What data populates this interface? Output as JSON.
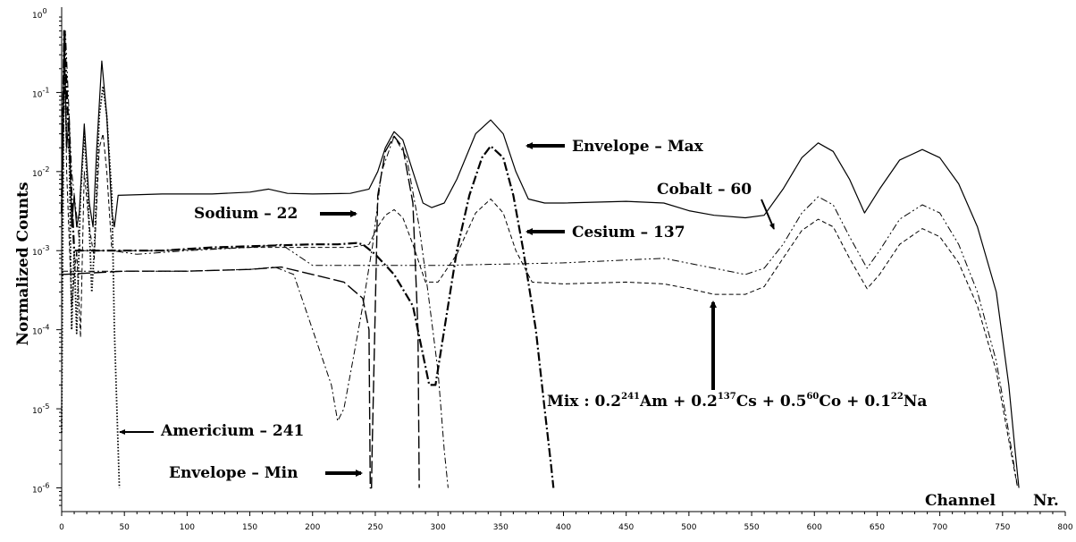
{
  "chart_data": {
    "type": "line",
    "title": "",
    "xlabel": "Channel Nr.",
    "ylabel": "Normalized Counts",
    "xlim": [
      0,
      800
    ],
    "ylim_log10": [
      -6.3,
      0
    ],
    "y_scale": "log",
    "grid": false,
    "x_ticks": [
      "0",
      "50",
      "100",
      "150",
      "200",
      "250",
      "300",
      "350",
      "400",
      "450",
      "500",
      "550",
      "600",
      "650",
      "700",
      "750",
      "800"
    ],
    "y_ticks": [
      {
        "base": "10",
        "exp": "0",
        "log": 0
      },
      {
        "base": "10",
        "exp": "-1",
        "log": -1
      },
      {
        "base": "10",
        "exp": "-2",
        "log": -2
      },
      {
        "base": "10",
        "exp": "-3",
        "log": -3
      },
      {
        "base": "10",
        "exp": "-4",
        "log": -4
      },
      {
        "base": "10",
        "exp": "-5",
        "log": -5
      },
      {
        "base": "10",
        "exp": "-6",
        "log": -6
      }
    ],
    "series": [
      {
        "name": "Envelope – Max",
        "style": "solid",
        "color": "#000000",
        "points": [
          [
            0,
            0.004
          ],
          [
            2,
            0.6
          ],
          [
            4,
            0.02
          ],
          [
            6,
            0.05
          ],
          [
            8,
            0.002
          ],
          [
            10,
            0.005
          ],
          [
            12,
            0.002
          ],
          [
            14,
            0.003
          ],
          [
            18,
            0.04
          ],
          [
            22,
            0.004
          ],
          [
            25,
            0.002
          ],
          [
            28,
            0.02
          ],
          [
            32,
            0.25
          ],
          [
            36,
            0.05
          ],
          [
            40,
            0.003
          ],
          [
            42,
            0.002
          ],
          [
            45,
            0.005
          ],
          [
            80,
            0.0052
          ],
          [
            120,
            0.0052
          ],
          [
            150,
            0.0055
          ],
          [
            165,
            0.006
          ],
          [
            180,
            0.0053
          ],
          [
            200,
            0.0052
          ],
          [
            230,
            0.0053
          ],
          [
            245,
            0.006
          ],
          [
            252,
            0.01
          ],
          [
            258,
            0.02
          ],
          [
            265,
            0.032
          ],
          [
            272,
            0.025
          ],
          [
            280,
            0.01
          ],
          [
            288,
            0.004
          ],
          [
            295,
            0.0035
          ],
          [
            305,
            0.004
          ],
          [
            315,
            0.008
          ],
          [
            330,
            0.03
          ],
          [
            342,
            0.045
          ],
          [
            352,
            0.03
          ],
          [
            362,
            0.01
          ],
          [
            372,
            0.0045
          ],
          [
            385,
            0.004
          ],
          [
            400,
            0.004
          ],
          [
            450,
            0.0042
          ],
          [
            480,
            0.004
          ],
          [
            500,
            0.0032
          ],
          [
            520,
            0.0028
          ],
          [
            545,
            0.0026
          ],
          [
            560,
            0.0028
          ],
          [
            575,
            0.006
          ],
          [
            590,
            0.015
          ],
          [
            603,
            0.023
          ],
          [
            615,
            0.018
          ],
          [
            628,
            0.008
          ],
          [
            640,
            0.003
          ],
          [
            652,
            0.006
          ],
          [
            668,
            0.014
          ],
          [
            686,
            0.019
          ],
          [
            700,
            0.015
          ],
          [
            715,
            0.007
          ],
          [
            730,
            0.002
          ],
          [
            745,
            0.0003
          ],
          [
            755,
            2e-05
          ],
          [
            760,
            3e-06
          ],
          [
            763,
            1e-06
          ]
        ]
      },
      {
        "name": "Envelope – Min",
        "style": "longdash",
        "color": "#000000",
        "points": [
          [
            0,
            0.0005
          ],
          [
            50,
            0.00055
          ],
          [
            100,
            0.00055
          ],
          [
            150,
            0.00058
          ],
          [
            175,
            0.00062
          ],
          [
            200,
            0.0005
          ],
          [
            225,
            0.0004
          ],
          [
            240,
            0.00025
          ],
          [
            245,
            0.0001
          ],
          [
            246,
            1e-06
          ],
          [
            247,
            1e-06
          ],
          [
            247.5,
            3e-06
          ],
          [
            252,
            0.005
          ],
          [
            258,
            0.018
          ],
          [
            265,
            0.028
          ],
          [
            272,
            0.02
          ],
          [
            280,
            0.004
          ],
          [
            284,
            0.0001
          ],
          [
            285,
            1e-06
          ]
        ]
      },
      {
        "name": "Cesium – 137",
        "style": "dashdot",
        "color": "#000000",
        "points": [
          [
            0,
            0.003
          ],
          [
            2,
            0.6
          ],
          [
            5,
            0.05
          ],
          [
            10,
            0.001
          ],
          [
            40,
            0.001
          ],
          [
            80,
            0.001
          ],
          [
            120,
            0.0011
          ],
          [
            160,
            0.00115
          ],
          [
            200,
            0.0012
          ],
          [
            220,
            0.0012
          ],
          [
            235,
            0.00125
          ],
          [
            240,
            0.0012
          ],
          [
            250,
            0.0009
          ],
          [
            265,
            0.0005
          ],
          [
            280,
            0.0002
          ],
          [
            293,
            2e-05
          ],
          [
            298,
            2e-05
          ],
          [
            305,
            0.0001
          ],
          [
            315,
            0.001
          ],
          [
            325,
            0.005
          ],
          [
            335,
            0.015
          ],
          [
            342,
            0.021
          ],
          [
            352,
            0.015
          ],
          [
            360,
            0.005
          ],
          [
            368,
            0.001
          ],
          [
            378,
            0.0001
          ],
          [
            385,
            1e-05
          ],
          [
            390,
            2e-06
          ],
          [
            392,
            1e-06
          ]
        ]
      },
      {
        "name": "Sodium – 22",
        "style": "dashdot2",
        "color": "#000000",
        "points": [
          [
            0,
            0.00055
          ],
          [
            50,
            0.00055
          ],
          [
            100,
            0.00055
          ],
          [
            150,
            0.00058
          ],
          [
            170,
            0.00062
          ],
          [
            185,
            0.0005
          ],
          [
            200,
            0.0001
          ],
          [
            215,
            2e-05
          ],
          [
            220,
            7e-06
          ],
          [
            225,
            1e-05
          ],
          [
            232,
            4e-05
          ],
          [
            240,
            0.0002
          ],
          [
            248,
            0.0012
          ],
          [
            255,
            0.01
          ],
          [
            265,
            0.028
          ],
          [
            275,
            0.015
          ],
          [
            285,
            0.002
          ],
          [
            292,
            0.0003
          ],
          [
            300,
            3e-05
          ],
          [
            305,
            3e-06
          ],
          [
            308,
            1e-06
          ]
        ]
      },
      {
        "name": "Cobalt – 60",
        "style": "dashdotdot",
        "color": "#000000",
        "points": [
          [
            0,
            0.0012
          ],
          [
            3,
            0.6
          ],
          [
            8,
            0.01
          ],
          [
            15,
            0.001
          ],
          [
            25,
            0.001
          ],
          [
            40,
            0.001
          ],
          [
            60,
            0.0009
          ],
          [
            100,
            0.001
          ],
          [
            150,
            0.0011
          ],
          [
            175,
            0.0012
          ],
          [
            200,
            0.00065
          ],
          [
            300,
            0.00065
          ],
          [
            400,
            0.0007
          ],
          [
            480,
            0.0008
          ],
          [
            520,
            0.0006
          ],
          [
            545,
            0.0005
          ],
          [
            560,
            0.0006
          ],
          [
            575,
            0.0012
          ],
          [
            590,
            0.003
          ],
          [
            603,
            0.0048
          ],
          [
            615,
            0.0038
          ],
          [
            628,
            0.0015
          ],
          [
            642,
            0.0006
          ],
          [
            652,
            0.001
          ],
          [
            668,
            0.0025
          ],
          [
            686,
            0.0038
          ],
          [
            700,
            0.003
          ],
          [
            715,
            0.0012
          ],
          [
            730,
            0.0003
          ],
          [
            745,
            4e-05
          ],
          [
            755,
            5e-06
          ],
          [
            762,
            1e-06
          ]
        ]
      },
      {
        "name": "Mix : 0.2²⁴¹Am + 0.2¹³⁷Cs + 0.5⁶⁰Co + 0.1²²Na",
        "style": "dash",
        "color": "#000000",
        "points": [
          [
            0,
            0.003
          ],
          [
            2,
            0.55
          ],
          [
            4,
            0.01
          ],
          [
            8,
            0.0002
          ],
          [
            12,
            0.001
          ],
          [
            15,
            8e-05
          ],
          [
            18,
            0.01
          ],
          [
            22,
            0.002
          ],
          [
            26,
            0.0008
          ],
          [
            30,
            0.02
          ],
          [
            33,
            0.03
          ],
          [
            36,
            0.01
          ],
          [
            40,
            0.001
          ],
          [
            45,
            0.001
          ],
          [
            80,
            0.001
          ],
          [
            150,
            0.0011
          ],
          [
            200,
            0.0011
          ],
          [
            230,
            0.0011
          ],
          [
            245,
            0.0012
          ],
          [
            252,
            0.002
          ],
          [
            258,
            0.0028
          ],
          [
            265,
            0.0033
          ],
          [
            272,
            0.0026
          ],
          [
            280,
            0.0012
          ],
          [
            290,
            0.0004
          ],
          [
            300,
            0.0004
          ],
          [
            315,
            0.0009
          ],
          [
            330,
            0.003
          ],
          [
            342,
            0.0045
          ],
          [
            352,
            0.003
          ],
          [
            362,
            0.001
          ],
          [
            375,
            0.0004
          ],
          [
            400,
            0.00038
          ],
          [
            450,
            0.0004
          ],
          [
            480,
            0.00038
          ],
          [
            500,
            0.00033
          ],
          [
            520,
            0.00028
          ],
          [
            545,
            0.00028
          ],
          [
            560,
            0.00035
          ],
          [
            575,
            0.0008
          ],
          [
            590,
            0.0018
          ],
          [
            603,
            0.0025
          ],
          [
            615,
            0.002
          ],
          [
            628,
            0.0008
          ],
          [
            642,
            0.00033
          ],
          [
            652,
            0.0005
          ],
          [
            668,
            0.0012
          ],
          [
            686,
            0.0019
          ],
          [
            700,
            0.0015
          ],
          [
            715,
            0.0007
          ],
          [
            730,
            0.0002
          ],
          [
            745,
            3e-05
          ],
          [
            755,
            4e-06
          ],
          [
            762,
            1e-06
          ]
        ]
      },
      {
        "name": "Americium – 241",
        "style": "dot",
        "color": "#000000",
        "points": [
          [
            0,
            5e-06
          ],
          [
            1,
            0.002
          ],
          [
            2,
            0.5
          ],
          [
            4,
            0.02
          ],
          [
            6,
            0.02
          ],
          [
            8,
            0.0001
          ],
          [
            10,
            0.001
          ],
          [
            12,
            9e-05
          ],
          [
            15,
            0.005
          ],
          [
            18,
            0.03
          ],
          [
            21,
            0.005
          ],
          [
            24,
            0.0003
          ],
          [
            26,
            0.001
          ],
          [
            30,
            0.05
          ],
          [
            33,
            0.12
          ],
          [
            36,
            0.05
          ],
          [
            40,
            0.005
          ],
          [
            42,
            0.0001
          ],
          [
            44,
            1e-05
          ],
          [
            46,
            1e-06
          ]
        ]
      }
    ],
    "annotations": [
      {
        "text": "Envelope – Max"
      },
      {
        "text": "Cobalt – 60"
      },
      {
        "text": "Sodium – 22"
      },
      {
        "text": "Cesium – 137"
      },
      {
        "text": "Americium – 241"
      },
      {
        "text": "Envelope – Min"
      },
      {
        "text": "Channel"
      },
      {
        "text": "Nr."
      }
    ],
    "mix_label": {
      "prefix": "Mix : 0.2",
      "iso1": "241",
      "el1": "Am + 0.2",
      "iso2": "137",
      "el2": "Cs + 0.5",
      "iso3": "60",
      "el3": "Co + 0.1",
      "iso4": "22",
      "el4": "Na"
    }
  }
}
